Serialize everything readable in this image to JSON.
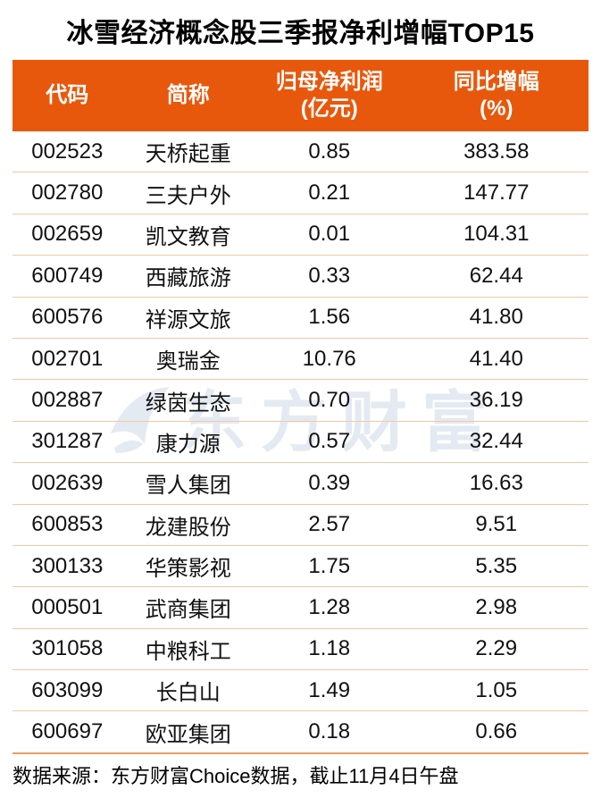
{
  "title": "冰雪经济概念股三季报净利增幅TOP15",
  "table": {
    "columns": [
      {
        "line1": "代码",
        "line2": ""
      },
      {
        "line1": "简称",
        "line2": ""
      },
      {
        "line1": "归母净利润",
        "line2": "(亿元)"
      },
      {
        "line1": "同比增幅",
        "line2": "(%)"
      }
    ],
    "rows": [
      {
        "code": "002523",
        "name": "天桥起重",
        "profit": "0.85",
        "growth": "383.58"
      },
      {
        "code": "002780",
        "name": "三夫户外",
        "profit": "0.21",
        "growth": "147.77"
      },
      {
        "code": "002659",
        "name": "凯文教育",
        "profit": "0.01",
        "growth": "104.31"
      },
      {
        "code": "600749",
        "name": "西藏旅游",
        "profit": "0.33",
        "growth": "62.44"
      },
      {
        "code": "600576",
        "name": "祥源文旅",
        "profit": "1.56",
        "growth": "41.80"
      },
      {
        "code": "002701",
        "name": "奥瑞金",
        "profit": "10.76",
        "growth": "41.40"
      },
      {
        "code": "002887",
        "name": "绿茵生态",
        "profit": "0.70",
        "growth": "36.19"
      },
      {
        "code": "301287",
        "name": "康力源",
        "profit": "0.57",
        "growth": "32.44"
      },
      {
        "code": "002639",
        "name": "雪人集团",
        "profit": "0.39",
        "growth": "16.63"
      },
      {
        "code": "600853",
        "name": "龙建股份",
        "profit": "2.57",
        "growth": "9.51"
      },
      {
        "code": "300133",
        "name": "华策影视",
        "profit": "1.75",
        "growth": "5.35"
      },
      {
        "code": "000501",
        "name": "武商集团",
        "profit": "1.28",
        "growth": "2.98"
      },
      {
        "code": "301058",
        "name": "中粮科工",
        "profit": "1.18",
        "growth": "2.29"
      },
      {
        "code": "603099",
        "name": "长白山",
        "profit": "1.49",
        "growth": "1.05"
      },
      {
        "code": "600697",
        "name": "欧亚集团",
        "profit": "0.18",
        "growth": "0.66"
      }
    ]
  },
  "footer": {
    "source_note": "数据来源：东方财富Choice数据，截止11月4日午盘"
  },
  "watermark": {
    "text": "东方财富"
  },
  "colors": {
    "header_bg": "#e8580c",
    "row_divider": "#f5c7a3",
    "footer_divider": "#ec9c63",
    "watermark": "#e4eaf2",
    "text": "#111111",
    "header_text": "#ffffff"
  },
  "chart_data": {
    "type": "table",
    "title": "冰雪经济概念股三季报净利增幅TOP15",
    "columns": [
      "代码",
      "简称",
      "归母净利润(亿元)",
      "同比增幅(%)"
    ],
    "rows": [
      [
        "002523",
        "天桥起重",
        0.85,
        383.58
      ],
      [
        "002780",
        "三夫户外",
        0.21,
        147.77
      ],
      [
        "002659",
        "凯文教育",
        0.01,
        104.31
      ],
      [
        "600749",
        "西藏旅游",
        0.33,
        62.44
      ],
      [
        "600576",
        "祥源文旅",
        1.56,
        41.8
      ],
      [
        "002701",
        "奥瑞金",
        10.76,
        41.4
      ],
      [
        "002887",
        "绿茵生态",
        0.7,
        36.19
      ],
      [
        "301287",
        "康力源",
        0.57,
        32.44
      ],
      [
        "002639",
        "雪人集团",
        0.39,
        16.63
      ],
      [
        "600853",
        "龙建股份",
        2.57,
        9.51
      ],
      [
        "300133",
        "华策影视",
        1.75,
        5.35
      ],
      [
        "000501",
        "武商集团",
        1.28,
        2.98
      ],
      [
        "301058",
        "中粮科工",
        1.18,
        2.29
      ],
      [
        "603099",
        "长白山",
        1.49,
        1.05
      ],
      [
        "600697",
        "欧亚集团",
        0.18,
        0.66
      ]
    ],
    "source": "数据来源：东方财富Choice数据，截止11月4日午盘"
  }
}
